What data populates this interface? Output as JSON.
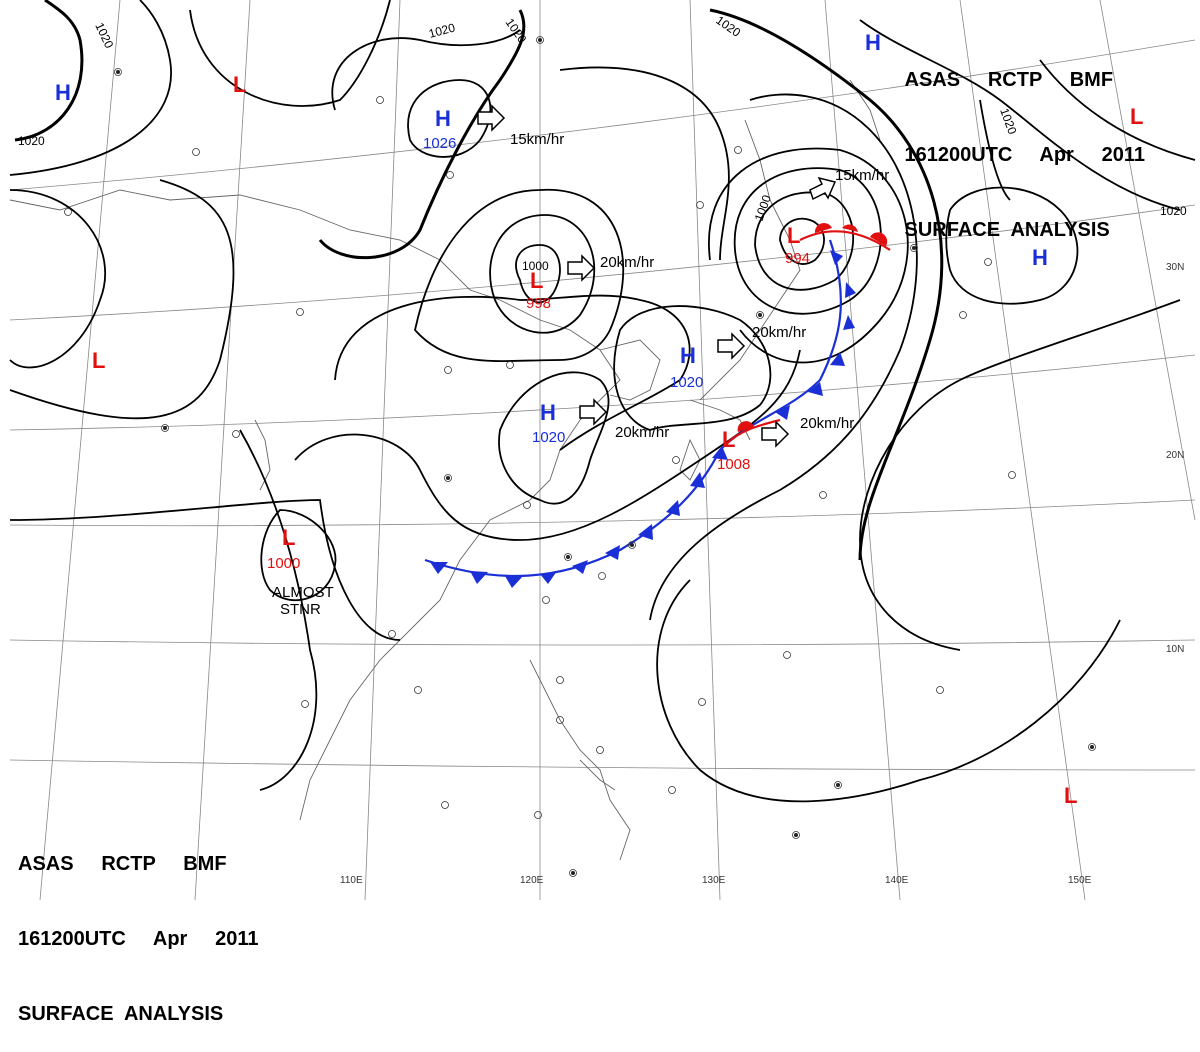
{
  "header": {
    "line1": "ASAS     RCTP     BMF",
    "line2": "161200UTC     Apr     2011",
    "line3": "SURFACE  ANALYSIS"
  },
  "colors": {
    "high": "#1a2fd6",
    "low": "#e01010",
    "front_cold": "#1a2fd6",
    "front_warm": "#e01010",
    "isobar": "#000000",
    "grid": "#888888",
    "coast": "#666666"
  },
  "longitude_labels": [
    "110E",
    "120E",
    "130E",
    "140E",
    "150E"
  ],
  "latitude_labels": [
    "30N",
    "20N",
    "10N"
  ],
  "pressure_systems": [
    {
      "id": "h-north-west",
      "type": "H",
      "pressure": ""
    },
    {
      "id": "l-north",
      "type": "L",
      "pressure": ""
    },
    {
      "id": "h-1026",
      "type": "H",
      "pressure": "1026"
    },
    {
      "id": "l-998",
      "type": "L",
      "pressure": "998"
    },
    {
      "id": "h-1020-a",
      "type": "H",
      "pressure": "1020"
    },
    {
      "id": "h-1020-b",
      "type": "H",
      "pressure": "1020"
    },
    {
      "id": "l-994",
      "type": "L",
      "pressure": "994"
    },
    {
      "id": "l-1008",
      "type": "L",
      "pressure": "1008"
    },
    {
      "id": "l-1000",
      "type": "L",
      "pressure": "1000"
    },
    {
      "id": "l-west",
      "type": "L",
      "pressure": ""
    },
    {
      "id": "h-top",
      "type": "H",
      "pressure": ""
    },
    {
      "id": "h-east",
      "type": "H",
      "pressure": ""
    },
    {
      "id": "l-northeast",
      "type": "L",
      "pressure": ""
    },
    {
      "id": "l-southeast",
      "type": "L",
      "pressure": ""
    }
  ],
  "movements": [
    "15km/hr",
    "20km/hr",
    "20km/hr",
    "20km/hr",
    "15km/hr",
    "20km/hr"
  ],
  "isobar_labels": [
    "1020",
    "1020",
    "1020",
    "1020",
    "1020",
    "1020",
    "1020",
    "1000",
    "1000"
  ],
  "annotations": {
    "stationary_line1": "ALMOST",
    "stationary_line2": "STNR"
  }
}
